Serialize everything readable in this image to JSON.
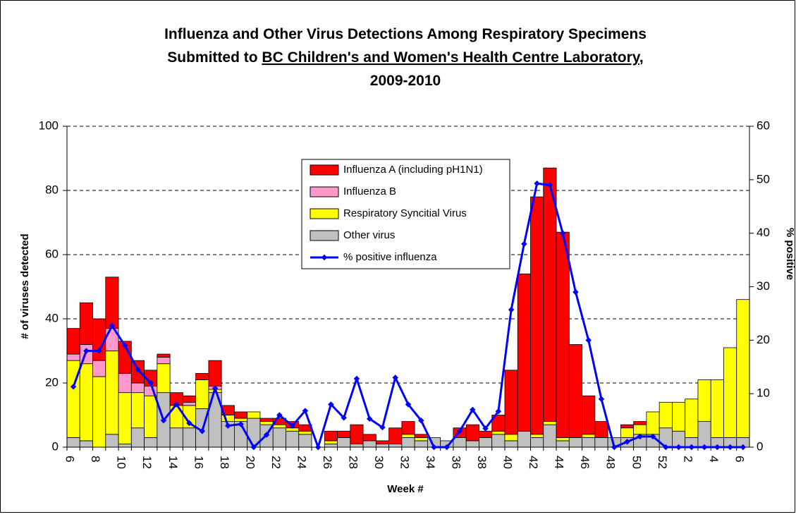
{
  "chart_data": {
    "type": "stacked-bar-line",
    "title": {
      "line1": "Influenza and Other Virus Detections Among Respiratory Specimens",
      "line2_prefix": "Submitted to ",
      "line2_underlined": "BC Children's and Women's Health Centre Laboratory",
      "line2_suffix": ",",
      "line3": "2009-2010"
    },
    "x_label": "Week #",
    "y_label": "# of viruses detected",
    "y2_label": "% positive",
    "categories": [
      6,
      null,
      8,
      null,
      10,
      null,
      12,
      null,
      14,
      null,
      16,
      null,
      18,
      null,
      20,
      null,
      22,
      null,
      24,
      null,
      26,
      null,
      28,
      null,
      30,
      null,
      32,
      null,
      34,
      null,
      36,
      null,
      38,
      null,
      40,
      null,
      42,
      null,
      44,
      null,
      46,
      null,
      48,
      null,
      50,
      null,
      52,
      null,
      2,
      null,
      4,
      null,
      6
    ],
    "series": [
      {
        "name": "Influenza A (including pH1N1)",
        "color": "#ff0000",
        "values": [
          8,
          13,
          13,
          16,
          10,
          7,
          5,
          1,
          4,
          2,
          2,
          8,
          3,
          2,
          0,
          1,
          2,
          2,
          2,
          0,
          3,
          2,
          6,
          2,
          1,
          5,
          4,
          1,
          0,
          0,
          3,
          5,
          2,
          5,
          20,
          49,
          74,
          79,
          64,
          29,
          12,
          5,
          0,
          1,
          1,
          0,
          0,
          0,
          0,
          0,
          0,
          0,
          0
        ]
      },
      {
        "name": "Influenza B",
        "color": "#ff99cc",
        "values": [
          2,
          6,
          5,
          7,
          6,
          3,
          3,
          2,
          0,
          1,
          0,
          1,
          0,
          0,
          0,
          0,
          0,
          0,
          0,
          0,
          0,
          0,
          0,
          0,
          0,
          0,
          0,
          0,
          0,
          0,
          0,
          0,
          0,
          0,
          0,
          0,
          0,
          0,
          0,
          0,
          0,
          0,
          0,
          0,
          0,
          0,
          0,
          0,
          0,
          0,
          0,
          0,
          0
        ]
      },
      {
        "name": "Respiratory Syncitial Virus",
        "color": "#ffff00",
        "values": [
          24,
          24,
          22,
          26,
          16,
          11,
          13,
          9,
          7,
          7,
          9,
          1,
          2,
          1,
          2,
          1,
          1,
          1,
          1,
          0,
          1,
          0,
          0,
          0,
          0,
          0,
          1,
          1,
          0,
          0,
          0,
          0,
          0,
          1,
          2,
          0,
          1,
          1,
          1,
          0,
          1,
          0,
          0,
          3,
          3,
          7,
          8,
          9,
          12,
          13,
          18,
          28,
          43
        ]
      },
      {
        "name": "Other virus",
        "color": "#c0c0c0",
        "values": [
          3,
          2,
          0,
          4,
          1,
          6,
          3,
          17,
          6,
          6,
          12,
          17,
          8,
          8,
          9,
          7,
          6,
          5,
          4,
          0,
          1,
          3,
          1,
          2,
          1,
          1,
          3,
          2,
          3,
          2,
          3,
          2,
          3,
          4,
          2,
          5,
          3,
          7,
          2,
          3,
          3,
          3,
          3,
          3,
          4,
          4,
          6,
          5,
          3,
          8,
          3,
          3,
          3
        ]
      },
      {
        "name": "% positive influenza",
        "type": "line",
        "axis": "y2",
        "color": "#0000ff",
        "values": [
          11.3,
          18,
          18,
          22.7,
          19,
          14.5,
          12,
          5,
          8,
          4.5,
          3,
          11,
          4,
          4.3,
          0,
          2.3,
          6,
          4,
          6.8,
          0,
          8,
          5.5,
          12.8,
          5.3,
          3.7,
          13,
          8,
          5,
          0,
          0,
          3,
          7,
          3.5,
          6.7,
          25.7,
          38,
          49.3,
          49,
          40,
          29,
          20,
          9,
          0,
          1,
          2,
          2,
          0,
          0,
          0,
          0,
          0,
          0,
          0
        ]
      }
    ],
    "ylim": [
      0,
      100
    ],
    "yticks": [
      0,
      20,
      40,
      60,
      80,
      100
    ],
    "y2lim": [
      0,
      60
    ],
    "y2ticks": [
      0,
      10,
      20,
      30,
      40,
      50,
      60
    ],
    "grid": true
  }
}
